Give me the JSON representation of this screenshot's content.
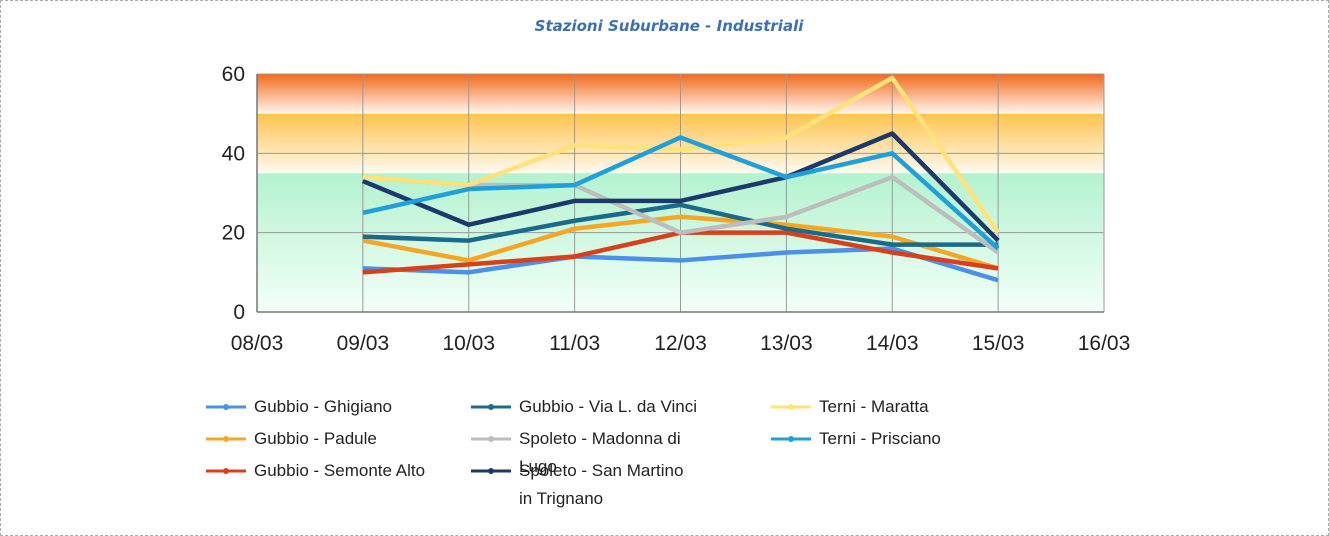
{
  "chart_data": {
    "type": "line",
    "title": "Stazioni Suburbane  - Industriali",
    "categories": [
      "08/03",
      "09/03",
      "10/03",
      "11/03",
      "12/03",
      "13/03",
      "14/03",
      "15/03",
      "16/03"
    ],
    "ylim": [
      0,
      60
    ],
    "yticks": [
      0,
      20,
      40,
      60
    ],
    "grid": true,
    "bands": [
      {
        "from": 0,
        "to": 35,
        "color": "#b3f2cf"
      },
      {
        "from": 35,
        "to": 50,
        "color": "#ffc34d"
      },
      {
        "from": 50,
        "to": 60,
        "color": "#f26a1b"
      }
    ],
    "series": [
      {
        "name": "Gubbio - Ghigiano",
        "color": "#4a8fe8",
        "values": [
          null,
          11,
          10,
          14,
          13,
          15,
          16,
          8,
          null
        ]
      },
      {
        "name": "Gubbio - Padule",
        "color": "#f5a623",
        "values": [
          null,
          18,
          13,
          21,
          24,
          22,
          19,
          11,
          null
        ]
      },
      {
        "name": "Gubbio - Semonte Alto",
        "color": "#d9401a",
        "values": [
          null,
          10,
          12,
          14,
          20,
          20,
          15,
          11,
          null
        ]
      },
      {
        "name": "Gubbio - Via L. da Vinci",
        "color": "#1c6a8a",
        "values": [
          null,
          19,
          18,
          23,
          27,
          21,
          17,
          17,
          null
        ]
      },
      {
        "name": "Spoleto - Madonna di Lugo",
        "color": "#bdbdbd",
        "values": [
          null,
          34,
          32,
          32,
          20,
          24,
          34,
          15,
          null
        ]
      },
      {
        "name": "Spoleto - San Martino in Trignano",
        "color": "#1b3a6b",
        "values": [
          null,
          33,
          22,
          28,
          28,
          34,
          45,
          18,
          null
        ]
      },
      {
        "name": "Terni - Maratta",
        "color": "#ffe27a",
        "values": [
          null,
          34,
          32,
          42,
          41,
          44,
          59,
          20,
          null
        ]
      },
      {
        "name": "Terni - Prisciano",
        "color": "#1fa0da",
        "values": [
          null,
          25,
          31,
          32,
          44,
          34,
          40,
          16,
          null
        ]
      }
    ]
  }
}
